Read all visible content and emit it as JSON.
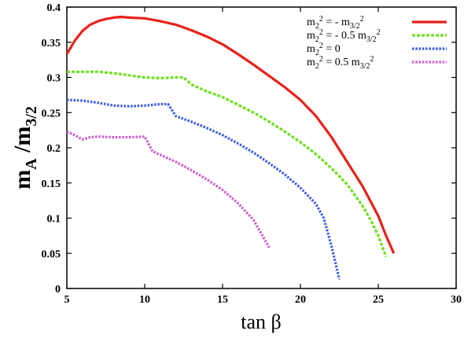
{
  "chart_data": {
    "type": "line",
    "xlabel": "tan β",
    "ylabel": "m_A /m_3/2",
    "xlim": [
      5,
      30
    ],
    "ylim": [
      0,
      0.4
    ],
    "xticks": [
      5,
      10,
      15,
      20,
      25,
      30
    ],
    "yticks": [
      0,
      0.05,
      0.1,
      0.15,
      0.2,
      0.25,
      0.3,
      0.35,
      0.4
    ],
    "ytick_labels": [
      "0",
      "0.05",
      "0.1",
      "0.15",
      "0.2",
      "0.25",
      "0.3",
      "0.35",
      "0.4"
    ],
    "grid": false,
    "legend_position": "top-right",
    "series": [
      {
        "name": "m2^2 = - m3/2^2",
        "legend_label": {
          "base": "m",
          "sub1": "2",
          "sup1": "2",
          "mid": " = - m",
          "sub2": "3/2",
          "sup2": "2"
        },
        "color": "#e8201a",
        "style": "solid",
        "x": [
          5.0,
          5.5,
          6.0,
          6.5,
          7.0,
          7.5,
          8.0,
          8.5,
          9.0,
          10.0,
          11.0,
          12.0,
          13.0,
          14.0,
          15.0,
          16.0,
          17.0,
          18.0,
          19.0,
          20.0,
          21.0,
          22.0,
          23.0,
          24.0,
          25.0,
          25.5,
          26.0
        ],
        "y": [
          0.333,
          0.352,
          0.366,
          0.375,
          0.38,
          0.383,
          0.385,
          0.386,
          0.385,
          0.384,
          0.38,
          0.375,
          0.367,
          0.358,
          0.347,
          0.333,
          0.318,
          0.302,
          0.286,
          0.268,
          0.245,
          0.215,
          0.18,
          0.145,
          0.103,
          0.075,
          0.05
        ]
      },
      {
        "name": "m2^2 = - 0.5 m3/2^2",
        "legend_label": {
          "base": "m",
          "sub1": "2",
          "sup1": "2",
          "mid": " = - 0.5 m",
          "sub2": "3/2",
          "sup2": "2"
        },
        "color": "#6fe020",
        "style": "dashed",
        "x": [
          5.0,
          6.0,
          7.0,
          8.0,
          9.0,
          10.0,
          11.0,
          12.0,
          12.5,
          13.0,
          14.0,
          15.0,
          16.0,
          17.0,
          18.0,
          19.0,
          20.0,
          21.0,
          22.0,
          23.0,
          24.0,
          24.5,
          25.0,
          25.5
        ],
        "y": [
          0.308,
          0.308,
          0.308,
          0.306,
          0.303,
          0.3,
          0.299,
          0.3,
          0.3,
          0.29,
          0.28,
          0.272,
          0.261,
          0.25,
          0.237,
          0.223,
          0.208,
          0.191,
          0.171,
          0.148,
          0.117,
          0.098,
          0.075,
          0.045
        ]
      },
      {
        "name": "m2^2 = 0",
        "legend_label": {
          "base": "m",
          "sub1": "2",
          "sup1": "2",
          "mid": " = 0",
          "sub2": "",
          "sup2": ""
        },
        "color": "#3a5be8",
        "style": "dotted",
        "x": [
          5.0,
          6.0,
          7.0,
          8.0,
          9.0,
          10.0,
          11.0,
          11.5,
          12.0,
          13.0,
          14.0,
          15.0,
          16.0,
          17.0,
          18.0,
          19.0,
          20.0,
          21.0,
          21.5,
          22.0,
          22.5
        ],
        "y": [
          0.268,
          0.267,
          0.264,
          0.26,
          0.259,
          0.26,
          0.262,
          0.262,
          0.245,
          0.237,
          0.228,
          0.218,
          0.206,
          0.193,
          0.178,
          0.162,
          0.143,
          0.12,
          0.1,
          0.06,
          0.013
        ]
      },
      {
        "name": "m2^2 = 0.5 m3/2^2",
        "legend_label": {
          "base": "m",
          "sub1": "2",
          "sup1": "2",
          "mid": " = 0.5 m",
          "sub2": "3/2",
          "sup2": "2"
        },
        "color": "#d05ad0",
        "style": "dotted",
        "x": [
          5.0,
          5.5,
          6.0,
          6.5,
          7.0,
          8.0,
          9.0,
          10.0,
          10.5,
          11.0,
          12.0,
          13.0,
          14.0,
          15.0,
          16.0,
          17.0,
          18.0
        ],
        "y": [
          0.223,
          0.218,
          0.212,
          0.215,
          0.216,
          0.215,
          0.215,
          0.216,
          0.195,
          0.19,
          0.18,
          0.168,
          0.155,
          0.14,
          0.121,
          0.097,
          0.058
        ]
      }
    ]
  }
}
